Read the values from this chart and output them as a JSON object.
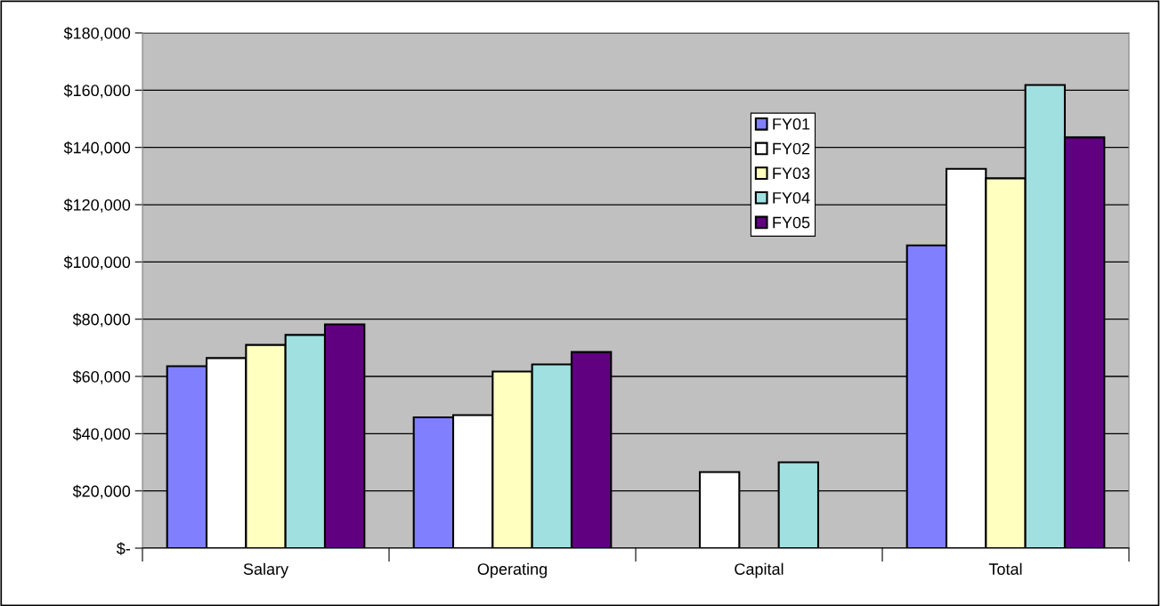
{
  "chart_data": {
    "type": "bar",
    "categories": [
      "Salary",
      "Operating",
      "Capital",
      "Total"
    ],
    "series": [
      {
        "name": "FY01",
        "color": "#8080ff",
        "values": [
          63600,
          45700,
          null,
          105800
        ]
      },
      {
        "name": "FY02",
        "color": "#ffffff",
        "values": [
          66400,
          46500,
          26600,
          132500
        ]
      },
      {
        "name": "FY03",
        "color": "#ffffc0",
        "values": [
          71000,
          61700,
          null,
          129200
        ]
      },
      {
        "name": "FY04",
        "color": "#a0e0e0",
        "values": [
          74500,
          64200,
          30000,
          161800
        ]
      },
      {
        "name": "FY05",
        "color": "#600080",
        "values": [
          78200,
          68500,
          null,
          143500
        ]
      }
    ],
    "ylim": [
      0,
      180000
    ],
    "yticks": [
      {
        "value": 0,
        "label": "$-"
      },
      {
        "value": 20000,
        "label": "$20,000"
      },
      {
        "value": 40000,
        "label": "$40,000"
      },
      {
        "value": 60000,
        "label": "$60,000"
      },
      {
        "value": 80000,
        "label": "$80,000"
      },
      {
        "value": 100000,
        "label": "$100,000"
      },
      {
        "value": 120000,
        "label": "$120,000"
      },
      {
        "value": 140000,
        "label": "$140,000"
      },
      {
        "value": 160000,
        "label": "$160,000"
      },
      {
        "value": 180000,
        "label": "$180,000"
      }
    ],
    "grid": "y",
    "legend": "top right"
  }
}
